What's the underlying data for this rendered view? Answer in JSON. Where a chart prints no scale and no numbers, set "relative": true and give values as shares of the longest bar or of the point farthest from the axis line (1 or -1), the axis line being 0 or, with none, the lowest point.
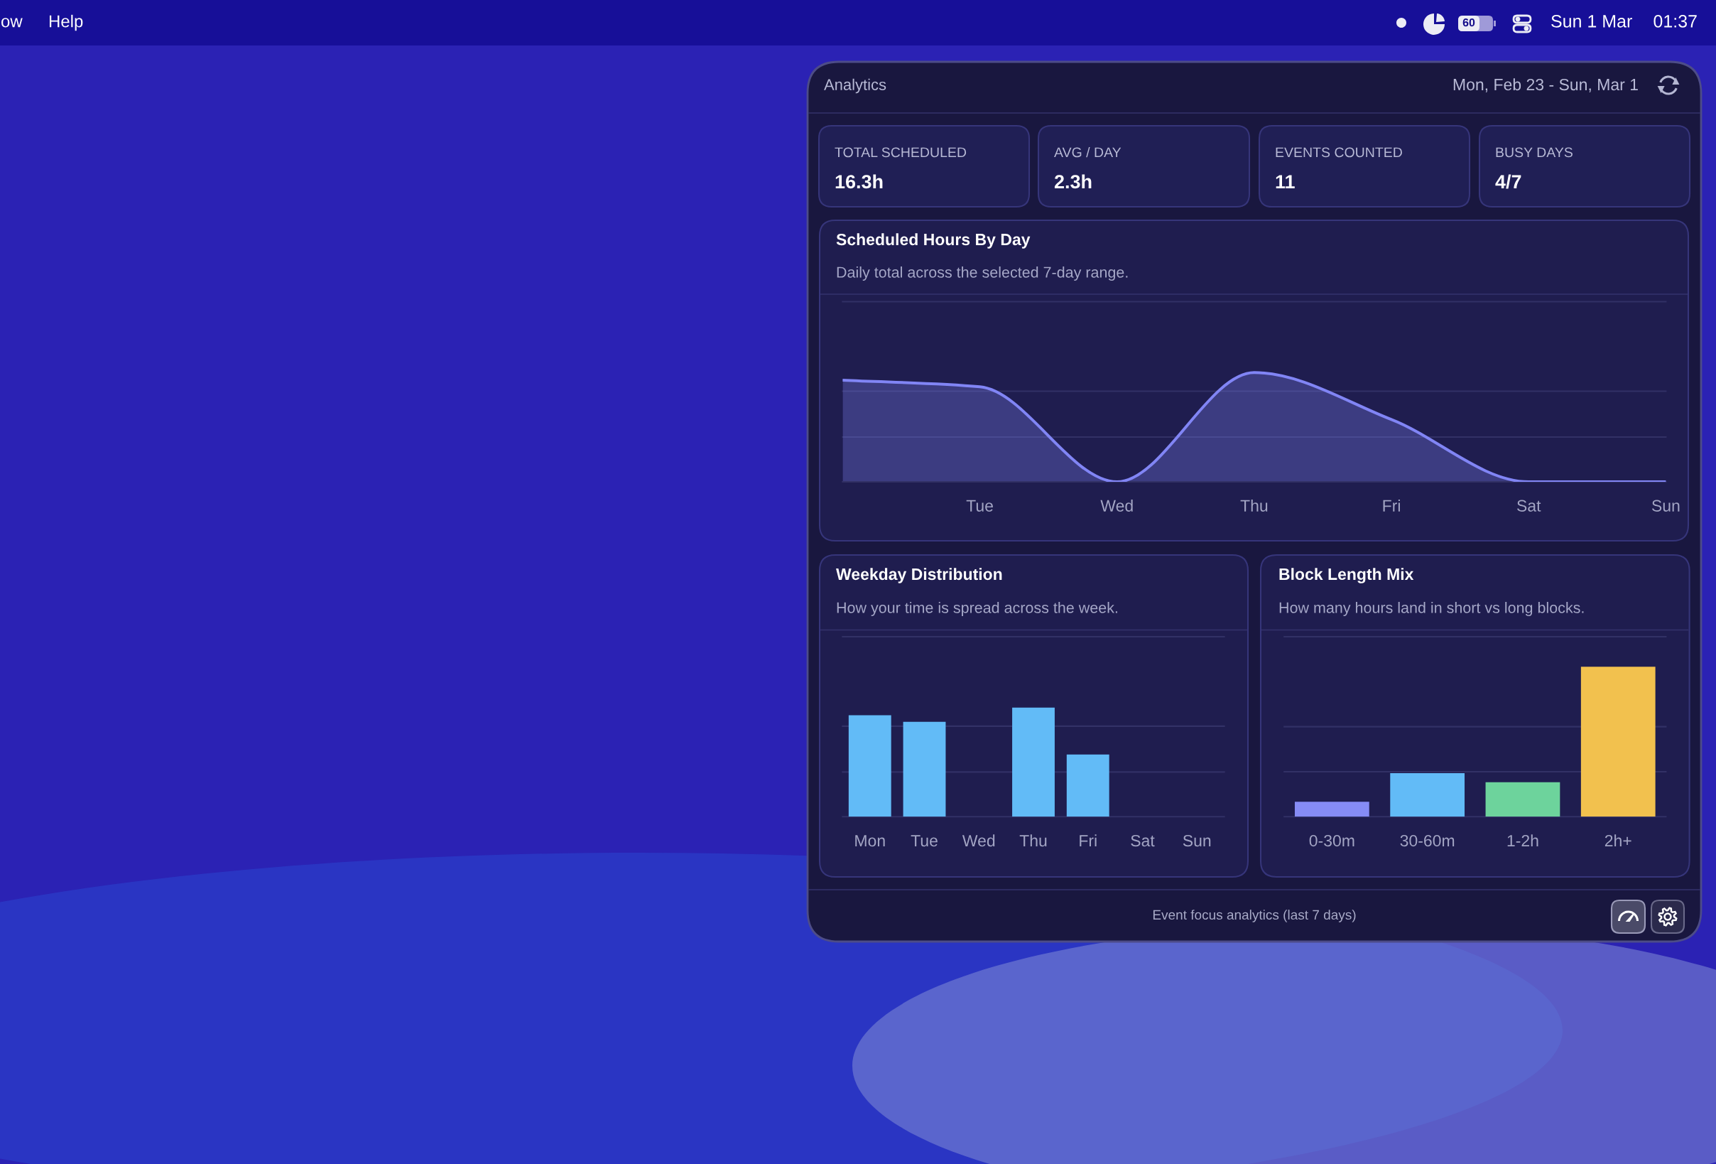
{
  "chart_data": [
    {
      "type": "other",
      "title": "Analytics",
      "subtitle": "Mon, Feb 23 - Sun, Mar 1",
      "annotations": [
        "TOTAL SCHEDULED",
        "16.3h",
        "AVG / DAY",
        "2.3h",
        "EVENTS COUNTED",
        "11",
        "BUSY DAYS",
        "4/7",
        "Event focus analytics (last 7 days)",
        "ow",
        "Help",
        "60",
        "Sun 1 Mar",
        "01:37"
      ]
    },
    {
      "type": "area",
      "title": "Scheduled Hours By Day",
      "subtitle": "Daily total across the selected 7-day range.",
      "categories": [
        null,
        "Tue",
        "Wed",
        "Thu",
        "Fri",
        "Sat",
        "Sun"
      ],
      "values": [
        0.93,
        0.87,
        0,
        1,
        0.57,
        0,
        0
      ],
      "color": "#8185f5",
      "relative": true,
      "ref_lines": [
        {
          "axis": "y",
          "value": 0.41,
          "color": "#323166"
        },
        {
          "axis": "y",
          "value": 0.83,
          "color": "#323166"
        },
        {
          "axis": "y",
          "value": 1.65,
          "color": "#323166"
        }
      ]
    },
    {
      "type": "bar",
      "title": "Weekday Distribution",
      "subtitle": "How your time is spread across the week.",
      "categories": [
        "Mon",
        "Tue",
        "Wed",
        "Thu",
        "Fri",
        "Sat",
        "Sun"
      ],
      "values": [
        0.93,
        0.87,
        0,
        1,
        0.57,
        0,
        0
      ],
      "color": "#62bbf7",
      "relative": true,
      "ref_lines": [
        {
          "axis": "y",
          "value": 0.41,
          "color": "#323166"
        },
        {
          "axis": "y",
          "value": 0.83,
          "color": "#323166"
        },
        {
          "axis": "y",
          "value": 1.65,
          "color": "#323166"
        }
      ]
    },
    {
      "type": "bar",
      "title": "Block Length Mix",
      "subtitle": "How many hours land in short vs long blocks.",
      "categories": [
        "0-30m",
        "30-60m",
        "1-2h",
        "2h+"
      ],
      "values": [
        0.1,
        0.29,
        0.23,
        1
      ],
      "colors": [
        "#868cf5",
        "#62bbf7",
        "#6dd39c",
        "#f2c14e"
      ],
      "relative": true,
      "ref_lines": [
        {
          "axis": "y",
          "value": 0.3,
          "color": "#323166"
        },
        {
          "axis": "y",
          "value": 0.6,
          "color": "#323166"
        },
        {
          "axis": "y",
          "value": 1.2,
          "color": "#323166"
        }
      ]
    }
  ]
}
